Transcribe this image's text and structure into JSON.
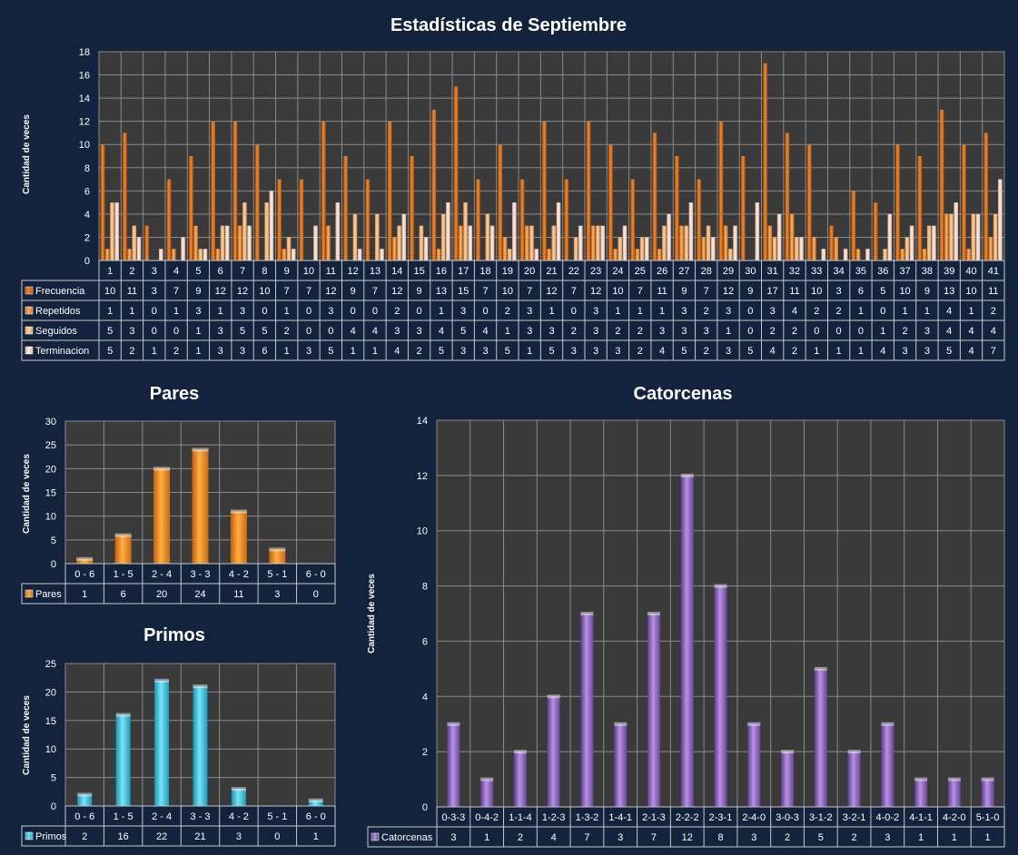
{
  "chart_data": [
    {
      "type": "bar",
      "title": "Estadísticas de Septiembre",
      "ylabel": "Cantidad de veces",
      "ylim": [
        0,
        18
      ],
      "yticks": [
        0,
        2,
        4,
        6,
        8,
        10,
        12,
        14,
        16,
        18
      ],
      "grid": true,
      "categories": [
        "1",
        "2",
        "3",
        "4",
        "5",
        "6",
        "7",
        "8",
        "9",
        "10",
        "11",
        "12",
        "13",
        "14",
        "15",
        "16",
        "17",
        "18",
        "19",
        "20",
        "21",
        "22",
        "23",
        "24",
        "25",
        "26",
        "27",
        "28",
        "29",
        "30",
        "31",
        "32",
        "33",
        "34",
        "35",
        "36",
        "37",
        "38",
        "39",
        "40",
        "41"
      ],
      "series": [
        {
          "name": "Frecuencia",
          "color": "#e07a1e",
          "values": [
            10,
            11,
            3,
            7,
            9,
            12,
            12,
            10,
            7,
            7,
            12,
            9,
            7,
            12,
            9,
            13,
            15,
            7,
            10,
            7,
            12,
            7,
            12,
            10,
            7,
            11,
            9,
            7,
            12,
            9,
            17,
            11,
            10,
            3,
            6,
            5,
            10,
            9,
            13,
            10,
            11
          ]
        },
        {
          "name": "Repetidos",
          "color": "#f39a3a",
          "values": [
            1,
            1,
            0,
            1,
            3,
            1,
            3,
            0,
            1,
            0,
            3,
            0,
            0,
            2,
            0,
            1,
            3,
            0,
            2,
            3,
            1,
            0,
            3,
            1,
            1,
            1,
            3,
            2,
            3,
            0,
            3,
            4,
            2,
            2,
            1,
            0,
            1,
            1,
            4,
            1,
            2
          ]
        },
        {
          "name": "Seguidos",
          "color": "#f7be80",
          "values": [
            5,
            3,
            0,
            0,
            1,
            3,
            5,
            5,
            2,
            0,
            0,
            4,
            4,
            3,
            3,
            4,
            5,
            4,
            1,
            3,
            3,
            2,
            3,
            2,
            2,
            3,
            3,
            3,
            1,
            0,
            2,
            2,
            0,
            0,
            0,
            1,
            2,
            3,
            4,
            4,
            4
          ]
        },
        {
          "name": "Terminacion",
          "color": "#f8dcc6",
          "values": [
            5,
            2,
            1,
            2,
            1,
            3,
            3,
            6,
            1,
            3,
            5,
            1,
            1,
            4,
            2,
            5,
            3,
            3,
            5,
            1,
            5,
            3,
            3,
            3,
            2,
            4,
            5,
            2,
            3,
            5,
            4,
            2,
            1,
            1,
            1,
            4,
            3,
            3,
            5,
            4,
            7
          ]
        }
      ]
    },
    {
      "type": "bar",
      "title": "Pares",
      "ylabel": "Cantidad de veces",
      "ylim": [
        0,
        30
      ],
      "yticks": [
        0,
        5,
        10,
        15,
        20,
        25,
        30
      ],
      "grid": true,
      "categories": [
        "0 - 6",
        "1 - 5",
        "2 - 4",
        "3 - 3",
        "4 - 2",
        "5 - 1",
        "6 - 0"
      ],
      "series": [
        {
          "name": "Pares",
          "color": "#f08a1a",
          "values": [
            1,
            6,
            20,
            24,
            11,
            3,
            0
          ]
        }
      ]
    },
    {
      "type": "bar",
      "title": "Primos",
      "ylabel": "Cantidad de veces",
      "ylim": [
        0,
        25
      ],
      "yticks": [
        0,
        5,
        10,
        15,
        20,
        25
      ],
      "grid": true,
      "categories": [
        "0 - 6",
        "1 - 5",
        "2 - 4",
        "3 - 3",
        "4 - 2",
        "5 - 1",
        "6 - 0"
      ],
      "series": [
        {
          "name": "Primos",
          "color": "#35c2e0",
          "values": [
            2,
            16,
            22,
            21,
            3,
            0,
            1
          ]
        }
      ]
    },
    {
      "type": "bar",
      "title": "Catorcenas",
      "ylabel": "Cantidad de veces",
      "ylim": [
        0,
        14
      ],
      "yticks": [
        0,
        2,
        4,
        6,
        8,
        10,
        12,
        14
      ],
      "grid": true,
      "categories": [
        "0-3-3",
        "0-4-2",
        "1-1-4",
        "1-2-3",
        "1-3-2",
        "1-4-1",
        "2-1-3",
        "2-2-2",
        "2-3-1",
        "2-4-0",
        "3-0-3",
        "3-1-2",
        "3-2-1",
        "4-0-2",
        "4-1-1",
        "4-2-0",
        "5-1-0"
      ],
      "series": [
        {
          "name": "Catorcenas",
          "color": "#8a5cc0",
          "values": [
            3,
            1,
            2,
            4,
            7,
            3,
            7,
            12,
            8,
            3,
            2,
            5,
            2,
            3,
            1,
            1,
            1
          ]
        }
      ]
    }
  ]
}
